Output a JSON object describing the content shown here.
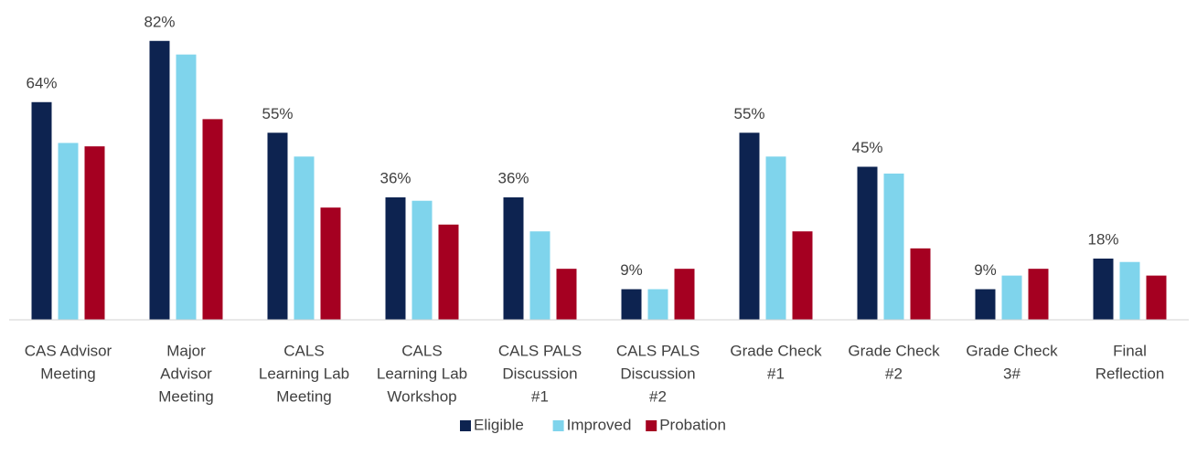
{
  "chart_data": {
    "type": "bar",
    "categories": [
      [
        "CAS Advisor",
        "Meeting"
      ],
      [
        "Major",
        "Advisor",
        "Meeting"
      ],
      [
        "CALS",
        "Learning Lab",
        "Meeting"
      ],
      [
        "CALS",
        "Learning Lab",
        "Workshop"
      ],
      [
        "CALS PALS",
        "Discussion",
        "#1"
      ],
      [
        "CALS PALS",
        "Discussion",
        "#2"
      ],
      [
        "Grade Check",
        "#1"
      ],
      [
        "Grade Check",
        "#2"
      ],
      [
        "Grade Check",
        "3#"
      ],
      [
        "Final",
        "Reflection"
      ]
    ],
    "series": [
      {
        "name": "Eligible",
        "color": "#0d2350",
        "values": [
          64,
          82,
          55,
          36,
          36,
          9,
          55,
          45,
          9,
          18
        ],
        "value_labels": [
          "64%",
          "82%",
          "55%",
          "36%",
          "36%",
          "9%",
          "55%",
          "45%",
          "9%",
          "18%"
        ]
      },
      {
        "name": "Improved",
        "color": "#7fd4ec",
        "values": [
          52,
          78,
          48,
          35,
          26,
          9,
          48,
          43,
          13,
          17
        ]
      },
      {
        "name": "Probation",
        "color": "#a50021",
        "values": [
          51,
          59,
          33,
          28,
          15,
          15,
          26,
          21,
          15,
          13
        ]
      }
    ],
    "ylim": [
      0,
      90
    ],
    "legend": "bottom"
  }
}
